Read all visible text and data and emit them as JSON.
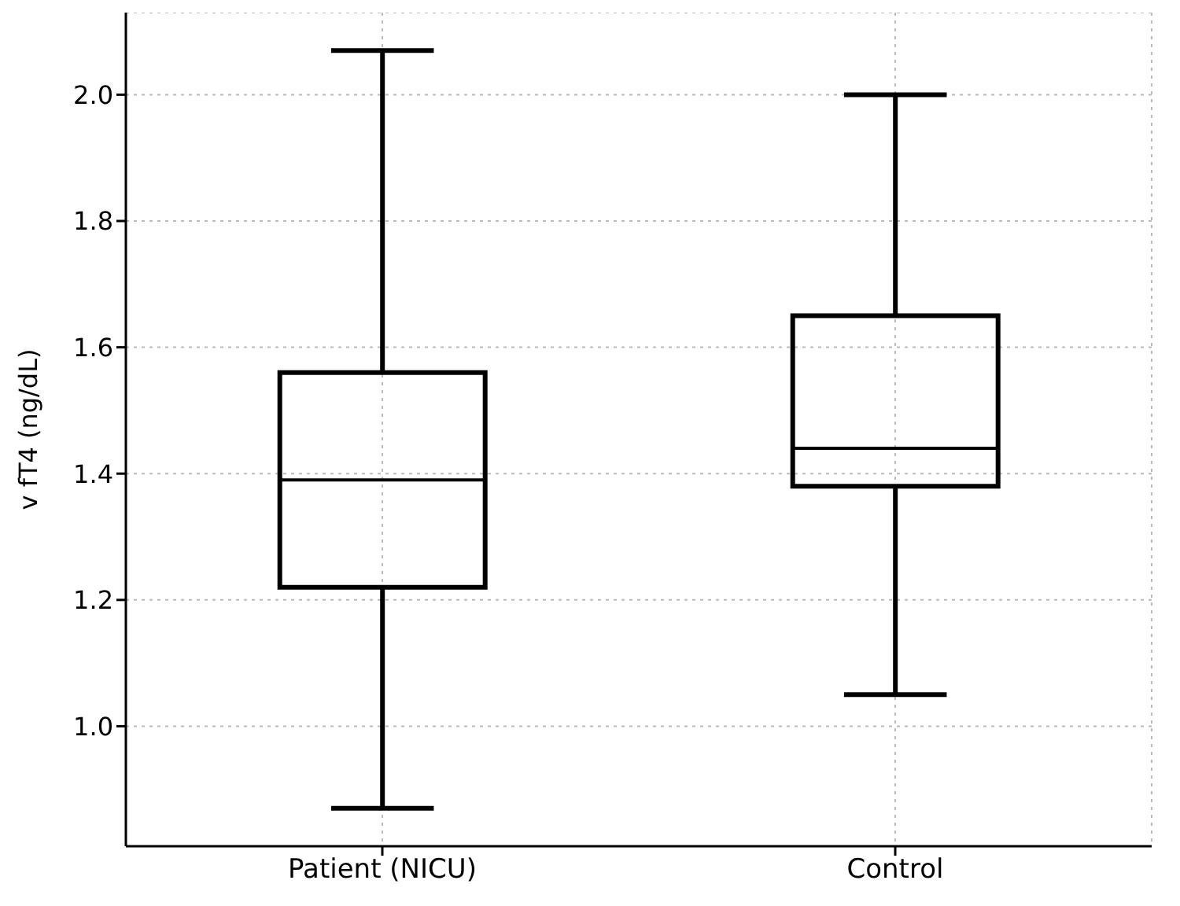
{
  "chart_data": {
    "type": "box",
    "ylabel": "v fT4 (ng/dL)",
    "categories": [
      "Patient (NICU)",
      "Control"
    ],
    "boxes": [
      {
        "low": 0.87,
        "q1": 1.22,
        "median": 1.39,
        "q3": 1.56,
        "high": 2.07
      },
      {
        "low": 1.05,
        "q1": 1.38,
        "median": 1.44,
        "q3": 1.65,
        "high": 2.0
      }
    ],
    "ylim": [
      0.81,
      2.13
    ],
    "yticks": [
      {
        "value": 1,
        "label": "1.0"
      },
      1.2,
      1.4,
      1.6,
      1.8,
      {
        "value": 2,
        "label": "2.0"
      }
    ],
    "grid": true,
    "color": "#000000"
  }
}
